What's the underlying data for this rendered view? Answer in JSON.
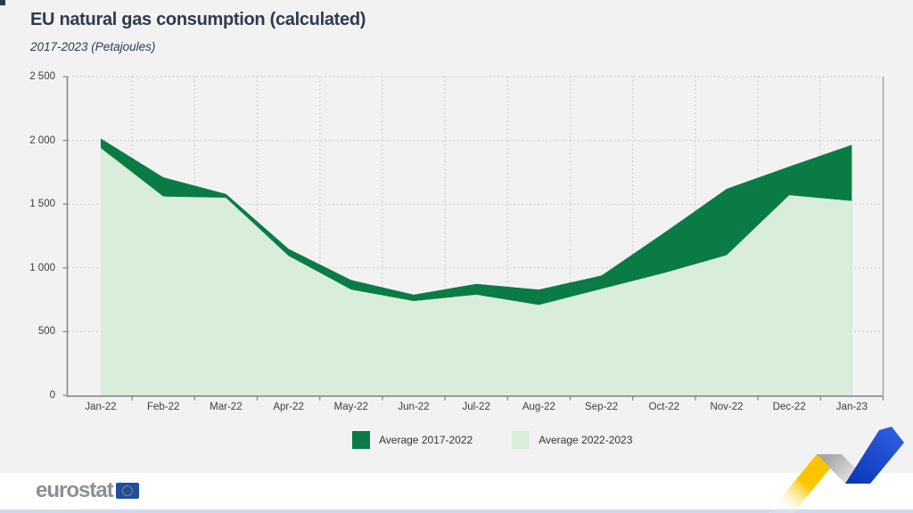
{
  "header": {
    "title": "EU natural gas consumption (calculated)",
    "subtitle": "2017-2023 (Petajoules)"
  },
  "chart_data": {
    "type": "area",
    "title": "EU natural gas consumption (calculated)",
    "subtitle": "2017-2023 (Petajoules)",
    "xlabel": "",
    "ylabel": "Petajoules",
    "categories": [
      "Jan-22",
      "Feb-22",
      "Mar-22",
      "Apr-22",
      "May-22",
      "Jun-22",
      "Jul-22",
      "Aug-22",
      "Sep-22",
      "Oct-22",
      "Nov-22",
      "Dec-22",
      "Jan-23"
    ],
    "series": [
      {
        "name": "Average 2017-2022",
        "color": "#0a7b45",
        "values": [
          2015,
          1710,
          1580,
          1150,
          905,
          790,
          875,
          830,
          940,
          1275,
          1620,
          1795,
          1965
        ]
      },
      {
        "name": "Average 2022-2023",
        "color": "#d9eeda",
        "values": [
          1940,
          1560,
          1550,
          1095,
          830,
          740,
          790,
          710,
          835,
          960,
          1100,
          1570,
          1525
        ]
      }
    ],
    "ylim": [
      0,
      2500
    ],
    "y_ticks": [
      0,
      500,
      1000,
      1500,
      2000,
      2500
    ],
    "y_tick_labels": [
      "0",
      "500",
      "1 000",
      "1 500",
      "2 000",
      "2 500"
    ],
    "grid": "dotted",
    "legend_position": "bottom-center"
  },
  "legend": {
    "items": [
      {
        "label": "Average 2017-2022",
        "color": "#0a7b45"
      },
      {
        "label": "Average 2022-2023",
        "color": "#d9eeda"
      }
    ]
  },
  "footer": {
    "logo_text": "eurostat"
  },
  "colors": {
    "background": "#f2f2f2",
    "series_dark_green": "#0a7b45",
    "series_light_green": "#d9eeda",
    "title_text": "#2e3a4e",
    "axis_text": "#3d3d3d",
    "gridline": "#c6c6c6",
    "axis_line": "#828282",
    "logo_gray": "#8d9093",
    "flag_blue": "#1d4fa4",
    "star_yellow": "#ffcc00",
    "ribbon_yellow": "#fdc500",
    "ribbon_blue": "#0c38b8",
    "footer_line": "#cdd9ef"
  }
}
